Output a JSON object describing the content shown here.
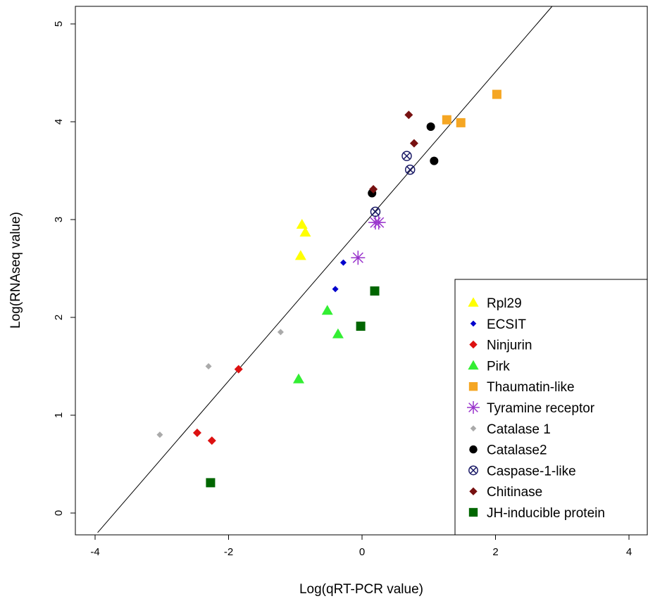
{
  "chart_data": {
    "type": "scatter",
    "title": "",
    "xlabel": "Log(qRT-PCR value)",
    "ylabel": "Log(RNAseq value)",
    "xlim": [
      -4.2,
      4.2
    ],
    "ylim": [
      -0.2,
      5.2
    ],
    "xticks": [
      -4,
      -2,
      0,
      2,
      4
    ],
    "yticks": [
      0,
      1,
      2,
      3,
      4,
      5
    ],
    "grid": false,
    "legend_position": "bottom-right",
    "fit_line": {
      "slope": 0.79,
      "intercept": 2.93
    },
    "series": [
      {
        "name": "Rpl29",
        "marker": "triangle",
        "color": "#ffff00",
        "points": [
          [
            -0.9,
            2.95
          ],
          [
            -0.85,
            2.87
          ],
          [
            -0.92,
            2.63
          ]
        ]
      },
      {
        "name": "ECSIT",
        "marker": "small-diamond",
        "color": "#0000cc",
        "points": [
          [
            -0.28,
            2.56
          ],
          [
            -0.4,
            2.29
          ]
        ]
      },
      {
        "name": "Ninjurin",
        "marker": "diamond",
        "color": "#dd1111",
        "points": [
          [
            -1.85,
            1.47
          ],
          [
            -2.47,
            0.82
          ],
          [
            -2.25,
            0.74
          ]
        ]
      },
      {
        "name": "Pirk",
        "marker": "triangle",
        "color": "#33ee33",
        "points": [
          [
            -0.52,
            2.07
          ],
          [
            -0.36,
            1.83
          ],
          [
            -0.95,
            1.37
          ]
        ]
      },
      {
        "name": "Thaumatin-like",
        "marker": "square",
        "color": "#f5a623",
        "points": [
          [
            1.27,
            4.02
          ],
          [
            1.48,
            3.99
          ],
          [
            2.02,
            4.28
          ]
        ]
      },
      {
        "name": "Tyramine receptor",
        "marker": "asterisk",
        "color": "#9933cc",
        "points": [
          [
            -0.06,
            2.61
          ],
          [
            0.2,
            2.97
          ],
          [
            0.25,
            2.97
          ]
        ]
      },
      {
        "name": "Catalase 1",
        "marker": "small-diamond",
        "color": "#aaaaaa",
        "points": [
          [
            -1.22,
            1.85
          ],
          [
            -2.3,
            1.5
          ],
          [
            -3.03,
            0.8
          ]
        ]
      },
      {
        "name": "Catalase2",
        "marker": "circle",
        "color": "#000000",
        "points": [
          [
            1.03,
            3.95
          ],
          [
            1.08,
            3.6
          ],
          [
            0.15,
            3.27
          ]
        ]
      },
      {
        "name": "Caspase-1-like",
        "marker": "circle-cross",
        "color": "#1a1a66",
        "points": [
          [
            0.67,
            3.65
          ],
          [
            0.72,
            3.51
          ],
          [
            0.2,
            3.08
          ]
        ]
      },
      {
        "name": "Chitinase",
        "marker": "diamond",
        "color": "#771111",
        "points": [
          [
            0.7,
            4.07
          ],
          [
            0.78,
            3.78
          ],
          [
            0.17,
            3.31
          ]
        ]
      },
      {
        "name": "JH-inducible protein",
        "marker": "square",
        "color": "#006600",
        "points": [
          [
            0.19,
            2.27
          ],
          [
            -0.02,
            1.91
          ],
          [
            -2.27,
            0.31
          ]
        ]
      }
    ]
  }
}
